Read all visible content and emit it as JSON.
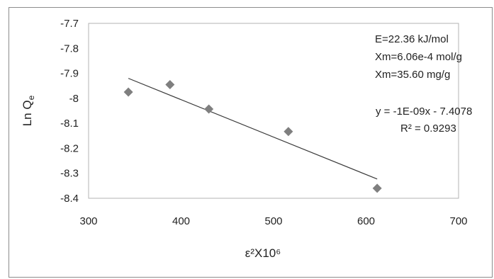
{
  "chart_data": {
    "type": "scatter",
    "title": "",
    "xlabel": "ε²X10⁶",
    "ylabel_main": "Ln Q",
    "ylabel_sub": "e",
    "xlim": [
      300,
      700
    ],
    "ylim": [
      -8.4,
      -7.7
    ],
    "x_ticks": [
      300,
      400,
      500,
      600,
      700
    ],
    "y_ticks": [
      -7.7,
      -7.8,
      -7.9,
      -8,
      -8.1,
      -8.2,
      -8.3,
      -8.4
    ],
    "grid": false,
    "legend": false,
    "marker_color": "#7f7f7f",
    "line_color": "#3a3a3a",
    "series": [
      {
        "points": [
          {
            "x": 343,
            "y": -7.975
          },
          {
            "x": 388,
            "y": -7.945
          },
          {
            "x": 430,
            "y": -8.043
          },
          {
            "x": 516,
            "y": -8.133
          },
          {
            "x": 612,
            "y": -8.36
          }
        ]
      }
    ],
    "trendline": {
      "x_start": 343,
      "y_start": -7.92,
      "x_end": 612,
      "y_end": -8.323
    },
    "annotations": {
      "energy": "E=22.36 kJ/mol",
      "xm_mol": "Xm=6.06e-4 mol/g",
      "xm_mg": "Xm=35.60 mg/g",
      "equation": "y = -1E-09x - 7.4078",
      "r_squared": "R² = 0.9293"
    }
  }
}
